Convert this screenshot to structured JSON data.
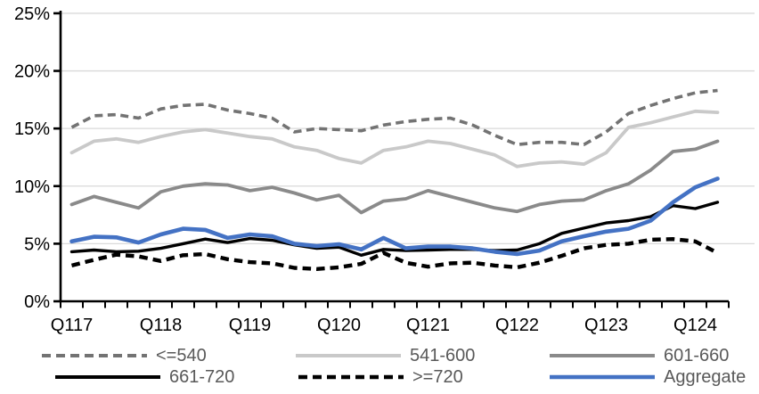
{
  "chart_data": {
    "type": "line",
    "title": "",
    "xlabel": "",
    "ylabel": "",
    "ylim": [
      0,
      25
    ],
    "grid": true,
    "legend_position": "bottom",
    "y_tick_labels": [
      "0%",
      "5%",
      "10%",
      "15%",
      "20%",
      "25%"
    ],
    "x_tick_labels": [
      "Q117",
      "Q118",
      "Q119",
      "Q120",
      "Q121",
      "Q122",
      "Q123",
      "Q124"
    ],
    "categories": [
      "Q117",
      "Q217",
      "Q317",
      "Q417",
      "Q118",
      "Q218",
      "Q318",
      "Q418",
      "Q119",
      "Q219",
      "Q319",
      "Q419",
      "Q120",
      "Q220",
      "Q320",
      "Q420",
      "Q121",
      "Q221",
      "Q321",
      "Q421",
      "Q122",
      "Q222",
      "Q322",
      "Q422",
      "Q123",
      "Q223",
      "Q323",
      "Q423",
      "Q124",
      "Q224"
    ],
    "series": [
      {
        "id": "le-540",
        "name": "<=540",
        "color": "#737373",
        "style": "dashed",
        "dash": "9 5.5",
        "width": 3.6,
        "values": [
          15.1,
          16.1,
          16.2,
          15.9,
          16.7,
          17.0,
          17.1,
          16.6,
          16.3,
          15.9,
          14.7,
          15.0,
          14.9,
          14.8,
          15.3,
          15.6,
          15.8,
          15.9,
          15.3,
          14.4,
          13.6,
          13.8,
          13.8,
          13.6,
          14.7,
          16.3,
          17.0,
          17.6,
          18.1,
          18.3
        ]
      },
      {
        "id": "541-600",
        "name": "541-600",
        "color": "#C9C9C9",
        "style": "solid",
        "dash": "",
        "width": 3.8,
        "values": [
          12.9,
          13.9,
          14.1,
          13.8,
          14.3,
          14.7,
          14.9,
          14.6,
          14.3,
          14.1,
          13.4,
          13.1,
          12.4,
          12.0,
          13.1,
          13.4,
          13.9,
          13.7,
          13.2,
          12.7,
          11.7,
          12.0,
          12.1,
          11.9,
          12.9,
          15.1,
          15.5,
          16.0,
          16.5,
          16.4
        ]
      },
      {
        "id": "601-660",
        "name": "601-660",
        "color": "#8A8A8A",
        "style": "solid",
        "dash": "",
        "width": 3.8,
        "values": [
          8.4,
          9.1,
          8.6,
          8.1,
          9.5,
          10.0,
          10.2,
          10.1,
          9.6,
          9.9,
          9.4,
          8.8,
          9.2,
          7.7,
          8.7,
          8.9,
          9.6,
          9.1,
          8.6,
          8.1,
          7.8,
          8.4,
          8.7,
          8.8,
          9.6,
          10.2,
          11.4,
          13.0,
          13.2,
          13.9
        ]
      },
      {
        "id": "661-720",
        "name": "661-720",
        "color": "#000000",
        "style": "solid",
        "dash": "",
        "width": 3.4,
        "values": [
          4.3,
          4.45,
          4.3,
          4.35,
          4.6,
          5.0,
          5.4,
          5.1,
          5.45,
          5.3,
          4.9,
          4.6,
          4.7,
          4.0,
          4.5,
          4.4,
          4.45,
          4.5,
          4.5,
          4.4,
          4.45,
          5.0,
          5.9,
          6.35,
          6.8,
          7.0,
          7.35,
          8.3,
          8.05,
          8.6
        ]
      },
      {
        "id": "ge-720",
        "name": ">=720",
        "color": "#000000",
        "style": "dashed",
        "dash": "9.5 6",
        "width": 4.4,
        "values": [
          3.1,
          3.6,
          4.05,
          3.9,
          3.5,
          4.0,
          4.1,
          3.65,
          3.4,
          3.3,
          2.9,
          2.8,
          2.95,
          3.25,
          4.2,
          3.35,
          3.0,
          3.3,
          3.35,
          3.1,
          2.95,
          3.35,
          3.95,
          4.6,
          4.9,
          5.0,
          5.35,
          5.4,
          5.2,
          4.2
        ]
      },
      {
        "id": "aggregate",
        "name": "Aggregate",
        "color": "#4472C4",
        "style": "solid",
        "dash": "",
        "width": 4.6,
        "values": [
          5.2,
          5.6,
          5.55,
          5.1,
          5.8,
          6.3,
          6.2,
          5.5,
          5.8,
          5.65,
          5.0,
          4.8,
          4.95,
          4.5,
          5.5,
          4.6,
          4.75,
          4.75,
          4.6,
          4.3,
          4.1,
          4.4,
          5.2,
          5.65,
          6.05,
          6.3,
          7.0,
          8.6,
          9.9,
          10.65
        ]
      }
    ],
    "colors": {
      "gridline": "#D9D9D9",
      "axis": "#000000",
      "axis_text": "#000000",
      "legend_text": "#595959",
      "accent_blue": "#4472C4"
    }
  }
}
